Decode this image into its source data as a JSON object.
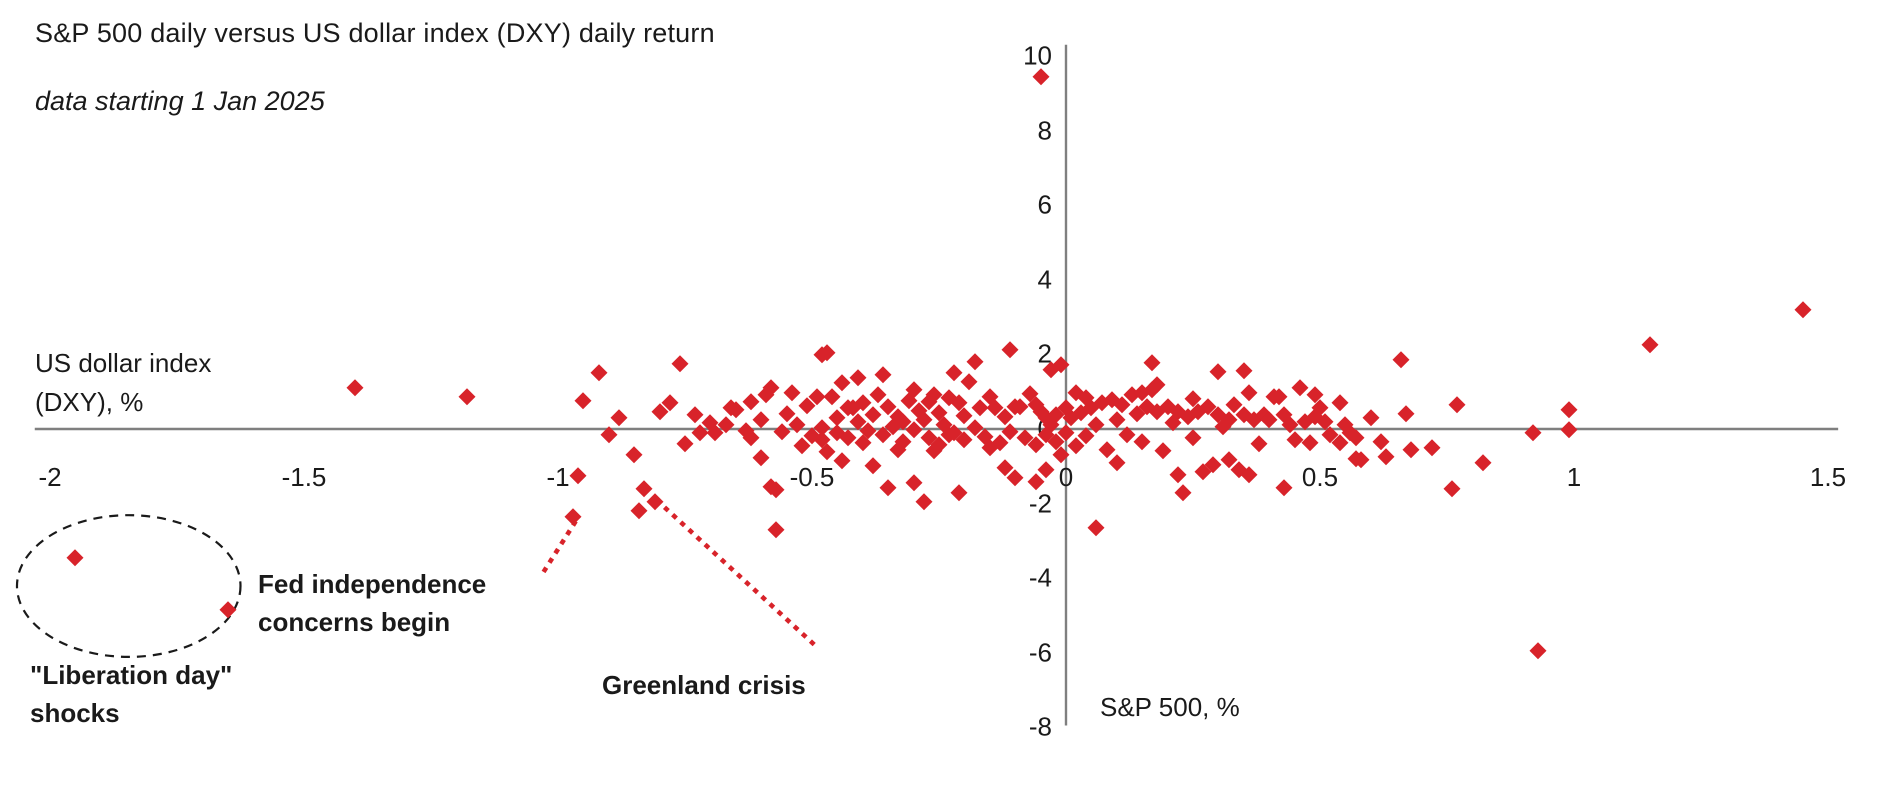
{
  "title": "S&P 500 daily versus US dollar index (DXY) daily return",
  "subtitle": "data starting 1 Jan 2025",
  "chart_data": {
    "type": "scatter",
    "xlabel": "US dollar index\n(DXY), %",
    "ylabel": "S&P 500, %",
    "xlim": [
      -2.03,
      1.52
    ],
    "ylim": [
      -7.95,
      10.3
    ],
    "x_ticks": [
      -2,
      -1.5,
      -1,
      -0.5,
      0,
      0.5,
      1,
      1.5
    ],
    "y_ticks": [
      10,
      8,
      6,
      4,
      2,
      0,
      -2,
      -4,
      -6,
      -8
    ],
    "grid": false,
    "legend": "none",
    "marker": "diamond",
    "marker_color": "#d8232a",
    "marker_size_px": 12.4,
    "axis_color": "#7f7f7f",
    "series": [
      {
        "name": "Daily returns since 1 Jan 2025",
        "points": [
          [
            -1.95,
            -3.45
          ],
          [
            -1.65,
            -4.85
          ],
          [
            -1.4,
            1.1
          ],
          [
            -1.18,
            0.85
          ],
          [
            -0.97,
            -2.35
          ],
          [
            -0.96,
            -1.25
          ],
          [
            -0.95,
            0.75
          ],
          [
            -0.92,
            1.5
          ],
          [
            -0.9,
            -0.15
          ],
          [
            -0.88,
            0.3
          ],
          [
            -0.85,
            -0.7
          ],
          [
            -0.84,
            -2.2
          ],
          [
            -0.83,
            -1.6
          ],
          [
            -0.81,
            -1.95
          ],
          [
            -0.8,
            0.45
          ],
          [
            -0.78,
            0.7
          ],
          [
            -0.76,
            1.75
          ],
          [
            -0.75,
            -0.4
          ],
          [
            -0.73,
            0.38
          ],
          [
            -0.72,
            -0.1
          ],
          [
            -0.7,
            0.15
          ],
          [
            -0.69,
            -0.12
          ],
          [
            -0.67,
            0.11
          ],
          [
            -0.66,
            0.55
          ],
          [
            -0.65,
            0.51
          ],
          [
            -0.63,
            -0.05
          ],
          [
            -0.62,
            0.72
          ],
          [
            -0.62,
            -0.24
          ],
          [
            -0.6,
            -0.78
          ],
          [
            -0.6,
            0.25
          ],
          [
            -0.59,
            0.91
          ],
          [
            -0.58,
            1.1
          ],
          [
            -0.58,
            -1.55
          ],
          [
            -0.57,
            -2.7
          ],
          [
            -0.57,
            -1.64
          ],
          [
            -0.56,
            -0.08
          ],
          [
            -0.55,
            0.4
          ],
          [
            -0.54,
            0.97
          ],
          [
            -0.53,
            0.1
          ],
          [
            -0.52,
            -0.45
          ],
          [
            -0.51,
            0.62
          ],
          [
            -0.5,
            -0.2
          ],
          [
            -0.49,
            0.85
          ],
          [
            -0.48,
            1.98
          ],
          [
            -0.48,
            0.03
          ],
          [
            -0.48,
            -0.3
          ],
          [
            -0.47,
            2.04
          ],
          [
            -0.47,
            -0.62
          ],
          [
            -0.46,
            0.86
          ],
          [
            -0.45,
            -0.11
          ],
          [
            -0.45,
            0.29
          ],
          [
            -0.44,
            1.23
          ],
          [
            -0.44,
            -0.85
          ],
          [
            -0.43,
            -0.24
          ],
          [
            -0.43,
            0.55
          ],
          [
            -0.42,
            0.56
          ],
          [
            -0.41,
            1.37
          ],
          [
            -0.41,
            0.19
          ],
          [
            -0.4,
            -0.38
          ],
          [
            -0.4,
            0.7
          ],
          [
            -0.39,
            -0.05
          ],
          [
            -0.38,
            0.38
          ],
          [
            -0.38,
            -1.0
          ],
          [
            -0.37,
            0.9
          ],
          [
            -0.36,
            1.45
          ],
          [
            -0.36,
            -0.16
          ],
          [
            -0.35,
            0.59
          ],
          [
            -0.35,
            -1.58
          ],
          [
            -0.34,
            0.05
          ],
          [
            -0.33,
            0.32
          ],
          [
            -0.33,
            -0.55
          ],
          [
            -0.32,
            0.19
          ],
          [
            -0.32,
            -0.35
          ],
          [
            -0.31,
            0.75
          ],
          [
            -0.3,
            1.05
          ],
          [
            -0.3,
            -0.03
          ],
          [
            -0.3,
            -1.45
          ],
          [
            -0.29,
            0.48
          ],
          [
            -0.28,
            -1.96
          ],
          [
            -0.28,
            0.25
          ],
          [
            -0.27,
            0.72
          ],
          [
            -0.27,
            -0.24
          ],
          [
            -0.26,
            0.91
          ],
          [
            -0.26,
            -0.6
          ],
          [
            -0.25,
            0.43
          ],
          [
            -0.25,
            -0.43
          ],
          [
            -0.24,
            0.1
          ],
          [
            -0.23,
            0.83
          ],
          [
            -0.23,
            -0.15
          ],
          [
            -0.22,
            1.5
          ],
          [
            -0.22,
            -0.11
          ],
          [
            -0.21,
            0.7
          ],
          [
            -0.21,
            -1.72
          ],
          [
            -0.2,
            -0.3
          ],
          [
            -0.2,
            0.35
          ],
          [
            -0.19,
            1.26
          ],
          [
            -0.18,
            1.8
          ],
          [
            -0.18,
            0.03
          ],
          [
            -0.17,
            0.55
          ],
          [
            -0.16,
            -0.21
          ],
          [
            -0.15,
            0.86
          ],
          [
            -0.15,
            -0.5
          ],
          [
            -0.14,
            0.56
          ],
          [
            -0.13,
            -0.38
          ],
          [
            -0.12,
            0.32
          ],
          [
            -0.12,
            -1.05
          ],
          [
            -0.11,
            2.12
          ],
          [
            -0.11,
            -0.08
          ],
          [
            -0.1,
            0.6
          ],
          [
            -0.1,
            -1.31
          ],
          [
            -0.09,
            0.59
          ],
          [
            -0.08,
            -0.24
          ],
          [
            -0.07,
            0.95
          ],
          [
            -0.06,
            0.64
          ],
          [
            -0.06,
            -0.43
          ],
          [
            -0.06,
            -1.42
          ],
          [
            -0.05,
            9.45
          ],
          [
            -0.05,
            0.46
          ],
          [
            -0.04,
            0.29
          ],
          [
            -0.04,
            -1.1
          ],
          [
            -0.04,
            -0.16
          ],
          [
            -0.03,
            1.58
          ],
          [
            -0.03,
            0.12
          ],
          [
            -0.02,
            0.38
          ],
          [
            -0.02,
            -0.35
          ],
          [
            -0.01,
            1.72
          ],
          [
            -0.01,
            -0.7
          ],
          [
            0.0,
            0.56
          ],
          [
            0.0,
            -0.12
          ],
          [
            0.01,
            0.3
          ],
          [
            0.02,
            0.97
          ],
          [
            0.02,
            -0.45
          ],
          [
            0.03,
            0.43
          ],
          [
            0.04,
            0.83
          ],
          [
            0.04,
            -0.2
          ],
          [
            0.05,
            0.56
          ],
          [
            0.06,
            -2.65
          ],
          [
            0.06,
            0.1
          ],
          [
            0.07,
            0.7
          ],
          [
            0.08,
            -0.55
          ],
          [
            0.09,
            0.78
          ],
          [
            0.1,
            0.25
          ],
          [
            0.1,
            -0.9
          ],
          [
            0.11,
            0.64
          ],
          [
            0.12,
            -0.15
          ],
          [
            0.13,
            0.9
          ],
          [
            0.14,
            0.4
          ],
          [
            0.15,
            0.97
          ],
          [
            0.15,
            -0.35
          ],
          [
            0.16,
            0.59
          ],
          [
            0.17,
            1.77
          ],
          [
            0.17,
            1.05
          ],
          [
            0.18,
            1.18
          ],
          [
            0.18,
            0.46
          ],
          [
            0.19,
            -0.6
          ],
          [
            0.2,
            0.59
          ],
          [
            0.21,
            0.15
          ],
          [
            0.22,
            0.46
          ],
          [
            0.22,
            -1.23
          ],
          [
            0.23,
            -1.72
          ],
          [
            0.24,
            0.32
          ],
          [
            0.25,
            0.8
          ],
          [
            0.25,
            -0.25
          ],
          [
            0.26,
            0.46
          ],
          [
            0.27,
            -1.15
          ],
          [
            0.28,
            0.59
          ],
          [
            0.29,
            -0.97
          ],
          [
            0.3,
            1.53
          ],
          [
            0.3,
            0.38
          ],
          [
            0.31,
            0.05
          ],
          [
            0.32,
            0.24
          ],
          [
            0.32,
            -0.83
          ],
          [
            0.33,
            0.65
          ],
          [
            0.34,
            -1.1
          ],
          [
            0.35,
            1.56
          ],
          [
            0.35,
            0.38
          ],
          [
            0.36,
            0.97
          ],
          [
            0.36,
            -1.23
          ],
          [
            0.37,
            0.24
          ],
          [
            0.38,
            -0.4
          ],
          [
            0.39,
            0.38
          ],
          [
            0.4,
            0.24
          ],
          [
            0.41,
            0.85
          ],
          [
            0.42,
            0.86
          ],
          [
            0.43,
            0.38
          ],
          [
            0.43,
            -1.58
          ],
          [
            0.44,
            0.1
          ],
          [
            0.45,
            -0.3
          ],
          [
            0.46,
            1.1
          ],
          [
            0.47,
            0.19
          ],
          [
            0.48,
            -0.38
          ],
          [
            0.49,
            0.91
          ],
          [
            0.49,
            0.32
          ],
          [
            0.5,
            0.56
          ],
          [
            0.51,
            0.19
          ],
          [
            0.52,
            -0.15
          ],
          [
            0.54,
            0.7
          ],
          [
            0.54,
            -0.38
          ],
          [
            0.55,
            0.11
          ],
          [
            0.56,
            -0.1
          ],
          [
            0.57,
            -0.25
          ],
          [
            0.57,
            -0.8
          ],
          [
            0.58,
            -0.83
          ],
          [
            0.6,
            0.3
          ],
          [
            0.62,
            -0.35
          ],
          [
            0.63,
            -0.75
          ],
          [
            0.66,
            1.85
          ],
          [
            0.67,
            0.4
          ],
          [
            0.68,
            -0.55
          ],
          [
            0.72,
            -0.5
          ],
          [
            0.77,
            0.65
          ],
          [
            0.76,
            -1.6
          ],
          [
            0.82,
            -0.9
          ],
          [
            0.92,
            -0.1
          ],
          [
            0.93,
            -5.95
          ],
          [
            0.99,
            0.5
          ],
          [
            0.99,
            -0.03
          ],
          [
            1.15,
            2.25
          ],
          [
            1.45,
            3.2
          ]
        ]
      }
    ],
    "annotations": {
      "liberation": {
        "line1": "\"Liberation day\"",
        "line2": "shocks",
        "ellipse": {
          "cx": -1.845,
          "cy": -4.21,
          "rx": 0.22,
          "ry": 1.9
        }
      },
      "fed": {
        "line1": "Fed independence",
        "line2": "concerns begin",
        "leader": {
          "x1": -1.026,
          "y1": -3.78,
          "x2": -0.965,
          "y2": -2.47
        }
      },
      "greenland": {
        "text": "Greenland crisis",
        "leader": {
          "x1": -0.787,
          "y1": -2.14,
          "x2": -0.486,
          "y2": -5.9
        }
      }
    }
  }
}
